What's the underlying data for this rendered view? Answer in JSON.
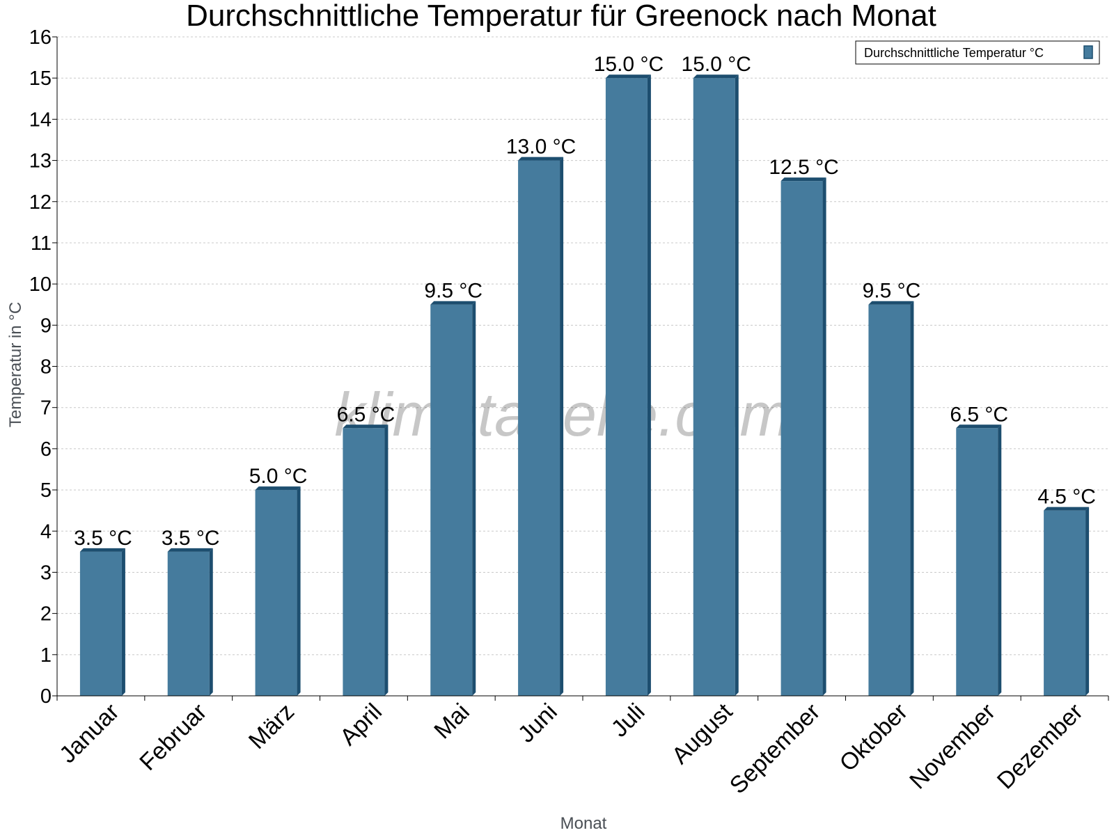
{
  "watermark": "klimatabelle.com",
  "colors": {
    "bar_front": "#457b9d",
    "bar_side": "#1d4e6f",
    "grid": "#c8c8c8",
    "axis": "#000000"
  },
  "chart_data": {
    "type": "bar",
    "title": "Durchschnittliche Temperatur für Greenock nach Monat",
    "xlabel": "Monat",
    "ylabel": "Temperatur in °C",
    "ylim": [
      0,
      16
    ],
    "yticks": [
      "0",
      "1",
      "2",
      "3",
      "4",
      "5",
      "6",
      "7",
      "8",
      "9",
      "10",
      "11",
      "12",
      "13",
      "14",
      "15",
      "16"
    ],
    "grid": true,
    "legend_position": "top-right",
    "categories": [
      "Januar",
      "Februar",
      "März",
      "April",
      "Mai",
      "Juni",
      "Juli",
      "August",
      "September",
      "Oktober",
      "November",
      "Dezember"
    ],
    "series": [
      {
        "name": "Durchschnittliche Temperatur °C",
        "values": [
          3.5,
          3.5,
          5.0,
          6.5,
          9.5,
          13.0,
          15.0,
          15.0,
          12.5,
          9.5,
          6.5,
          4.5
        ],
        "labels": [
          "3.5 °C",
          "3.5 °C",
          "5.0 °C",
          "6.5 °C",
          "9.5 °C",
          "13.0 °C",
          "15.0 °C",
          "15.0 °C",
          "12.5 °C",
          "9.5 °C",
          "6.5 °C",
          "4.5 °C"
        ]
      }
    ]
  }
}
